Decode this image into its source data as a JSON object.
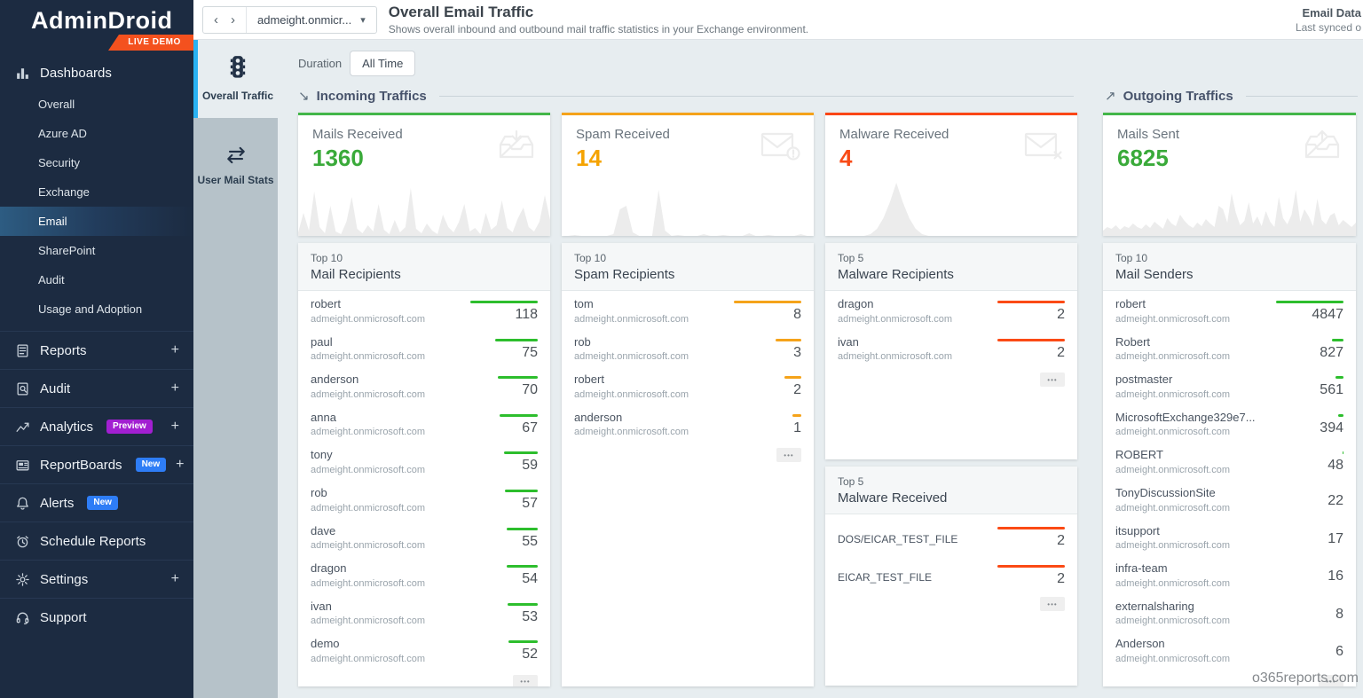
{
  "app": {
    "logo": "AdminDroid",
    "badge": "LIVE DEMO"
  },
  "sidebar": {
    "dashboards": {
      "label": "Dashboards",
      "icon": "bar-chart-icon",
      "items": [
        {
          "label": "Overall",
          "active": false
        },
        {
          "label": "Azure AD",
          "active": false
        },
        {
          "label": "Security",
          "active": false
        },
        {
          "label": "Exchange",
          "active": false
        },
        {
          "label": "Email",
          "active": true
        },
        {
          "label": "SharePoint",
          "active": false
        },
        {
          "label": "Audit",
          "active": false
        },
        {
          "label": "Usage and Adoption",
          "active": false
        }
      ]
    },
    "sections": [
      {
        "label": "Reports",
        "icon": "reports-icon",
        "plus": true
      },
      {
        "label": "Audit",
        "icon": "audit-icon",
        "plus": true
      },
      {
        "label": "Analytics",
        "icon": "analytics-icon",
        "plus": true,
        "badge": {
          "text": "Preview",
          "color": "#a21fd1"
        }
      },
      {
        "label": "ReportBoards",
        "icon": "reportboards-icon",
        "plus": true,
        "badge": {
          "text": "New",
          "color": "#2e7df6"
        }
      },
      {
        "label": "Alerts",
        "icon": "alerts-icon",
        "plus": false,
        "badge": {
          "text": "New",
          "color": "#2e7df6"
        }
      },
      {
        "label": "Schedule Reports",
        "icon": "schedule-icon",
        "plus": false
      },
      {
        "label": "Settings",
        "icon": "settings-icon",
        "plus": true
      },
      {
        "label": "Support",
        "icon": "support-icon",
        "plus": false
      }
    ]
  },
  "rail": {
    "tabs": [
      {
        "label": "Overall Traffic",
        "icon": "traffic-light-icon",
        "active": true
      },
      {
        "label": "User Mail Stats",
        "icon": "swap-arrows-icon",
        "active": false
      }
    ]
  },
  "header": {
    "back_glyph": "‹",
    "forward_glyph": "›",
    "workspace": "admeight.onmicr...",
    "caret_glyph": "▾",
    "title": "Overall Email Traffic",
    "subtitle": "Shows overall inbound and outbound mail traffic statistics in your Exchange environment.",
    "data_title": "Email Data",
    "data_sub": "Last synced o"
  },
  "toolbar": {
    "duration_label": "Duration",
    "duration_value": "All Time"
  },
  "sections": {
    "incoming": {
      "icon_glyph": "↘",
      "label": "Incoming Traffics"
    },
    "outgoing": {
      "icon_glyph": "↗",
      "label": "Outgoing Traffics"
    }
  },
  "stat_cards": [
    {
      "title": "Mails Received",
      "value": "1360",
      "accent": "#43b649",
      "value_color": "#3aaa3a",
      "icon": "inbox-arrow-down-icon",
      "group": "incoming",
      "sparkline": [
        4,
        26,
        6,
        50,
        10,
        3,
        34,
        5,
        2,
        16,
        44,
        8,
        3,
        12,
        5,
        36,
        7,
        2,
        18,
        4,
        10,
        54,
        8,
        3,
        14,
        6,
        2,
        24,
        10,
        4,
        16,
        36,
        5,
        9,
        2,
        26,
        7,
        12,
        40,
        9,
        4,
        20,
        32,
        10,
        5,
        16,
        46,
        18
      ]
    },
    {
      "title": "Spam Received",
      "value": "14",
      "accent": "#f5a31a",
      "value_color": "#f5a300",
      "icon": "mail-warning-icon",
      "group": "incoming",
      "sparkline": [
        0,
        0,
        1,
        0,
        0,
        0,
        0,
        0,
        2,
        30,
        34,
        4,
        0,
        0,
        0,
        52,
        6,
        0,
        1,
        0,
        0,
        0,
        2,
        0,
        0,
        1,
        0,
        0,
        0,
        3,
        0,
        0,
        1,
        0,
        0,
        0,
        0,
        2,
        0,
        0
      ]
    },
    {
      "title": "Malware Received",
      "value": "4",
      "accent": "#fa4616",
      "value_color": "#f84b17",
      "icon": "mail-x-icon",
      "group": "incoming",
      "sparkline": [
        0,
        0,
        0,
        0,
        0,
        0,
        0,
        2,
        8,
        20,
        38,
        60,
        38,
        20,
        8,
        2,
        0,
        0,
        0,
        0,
        0,
        0,
        0,
        0,
        0,
        0,
        0,
        0,
        0,
        0,
        0,
        0,
        0,
        0,
        0,
        0,
        0,
        0,
        0,
        0
      ]
    },
    {
      "title": "Mails Sent",
      "value": "6825",
      "accent": "#43b649",
      "value_color": "#3aaa3a",
      "icon": "outbox-arrow-up-icon",
      "group": "outgoing",
      "sparkline": [
        6,
        10,
        8,
        12,
        7,
        11,
        9,
        14,
        10,
        8,
        13,
        9,
        16,
        12,
        8,
        20,
        14,
        11,
        24,
        17,
        12,
        9,
        15,
        11,
        19,
        14,
        10,
        34,
        30,
        15,
        48,
        26,
        12,
        17,
        38,
        14,
        22,
        11,
        28,
        16,
        10,
        44,
        20,
        13,
        24,
        52,
        16,
        30,
        22,
        11,
        42,
        18,
        13,
        23,
        26,
        12,
        18,
        14,
        10,
        15
      ]
    }
  ],
  "lists": [
    {
      "id": "mail_recipients",
      "top": "Top 10",
      "title": "Mail Recipients",
      "bar_color": "#2dbe2d",
      "items": [
        {
          "name": "robert",
          "domain": "admeight.onmicrosoft.com",
          "value": 118
        },
        {
          "name": "paul",
          "domain": "admeight.onmicrosoft.com",
          "value": 75
        },
        {
          "name": "anderson",
          "domain": "admeight.onmicrosoft.com",
          "value": 70
        },
        {
          "name": "anna",
          "domain": "admeight.onmicrosoft.com",
          "value": 67
        },
        {
          "name": "tony",
          "domain": "admeight.onmicrosoft.com",
          "value": 59
        },
        {
          "name": "rob",
          "domain": "admeight.onmicrosoft.com",
          "value": 57
        },
        {
          "name": "dave",
          "domain": "admeight.onmicrosoft.com",
          "value": 55
        },
        {
          "name": "dragon",
          "domain": "admeight.onmicrosoft.com",
          "value": 54
        },
        {
          "name": "ivan",
          "domain": "admeight.onmicrosoft.com",
          "value": 53
        },
        {
          "name": "demo",
          "domain": "admeight.onmicrosoft.com",
          "value": 52
        }
      ]
    },
    {
      "id": "spam_recipients",
      "top": "Top 10",
      "title": "Spam Recipients",
      "bar_color": "#f5a31a",
      "items": [
        {
          "name": "tom",
          "domain": "admeight.onmicrosoft.com",
          "value": 8
        },
        {
          "name": "rob",
          "domain": "admeight.onmicrosoft.com",
          "value": 3
        },
        {
          "name": "robert",
          "domain": "admeight.onmicrosoft.com",
          "value": 2
        },
        {
          "name": "anderson",
          "domain": "admeight.onmicrosoft.com",
          "value": 1
        }
      ]
    },
    {
      "id": "malware_recipients",
      "top": "Top 5",
      "title": "Malware Recipients",
      "bar_color": "#fb4a15",
      "items": [
        {
          "name": "dragon",
          "domain": "admeight.onmicrosoft.com",
          "value": 2
        },
        {
          "name": "ivan",
          "domain": "admeight.onmicrosoft.com",
          "value": 2
        }
      ]
    },
    {
      "id": "malware_received",
      "top": "Top 5",
      "title": "Malware Received",
      "bar_color": "#fb4a15",
      "items": [
        {
          "name": "DOS/EICAR_TEST_FILE",
          "value": 2
        },
        {
          "name": "EICAR_TEST_FILE",
          "value": 2
        }
      ]
    },
    {
      "id": "mail_senders",
      "top": "Top 10",
      "title": "Mail Senders",
      "bar_color": "#2dbe2d",
      "items": [
        {
          "name": "robert",
          "domain": "admeight.onmicrosoft.com",
          "value": 4847
        },
        {
          "name": "Robert",
          "domain": "admeight.onmicrosoft.com",
          "value": 827
        },
        {
          "name": "postmaster",
          "domain": "admeight.onmicrosoft.com",
          "value": 561
        },
        {
          "name": "MicrosoftExchange329e7...",
          "domain": "admeight.onmicrosoft.com",
          "value": 394
        },
        {
          "name": "ROBERT",
          "domain": "admeight.onmicrosoft.com",
          "value": 48
        },
        {
          "name": "TonyDiscussionSite",
          "domain": "admeight.onmicrosoft.com",
          "value": 22
        },
        {
          "name": "itsupport",
          "domain": "admeight.onmicrosoft.com",
          "value": 17
        },
        {
          "name": "infra-team",
          "domain": "admeight.onmicrosoft.com",
          "value": 16
        },
        {
          "name": "externalsharing",
          "domain": "admeight.onmicrosoft.com",
          "value": 8
        },
        {
          "name": "Anderson",
          "domain": "admeight.onmicrosoft.com",
          "value": 6
        }
      ]
    }
  ],
  "ui": {
    "more": "•••"
  },
  "watermark": "o365reports.com"
}
